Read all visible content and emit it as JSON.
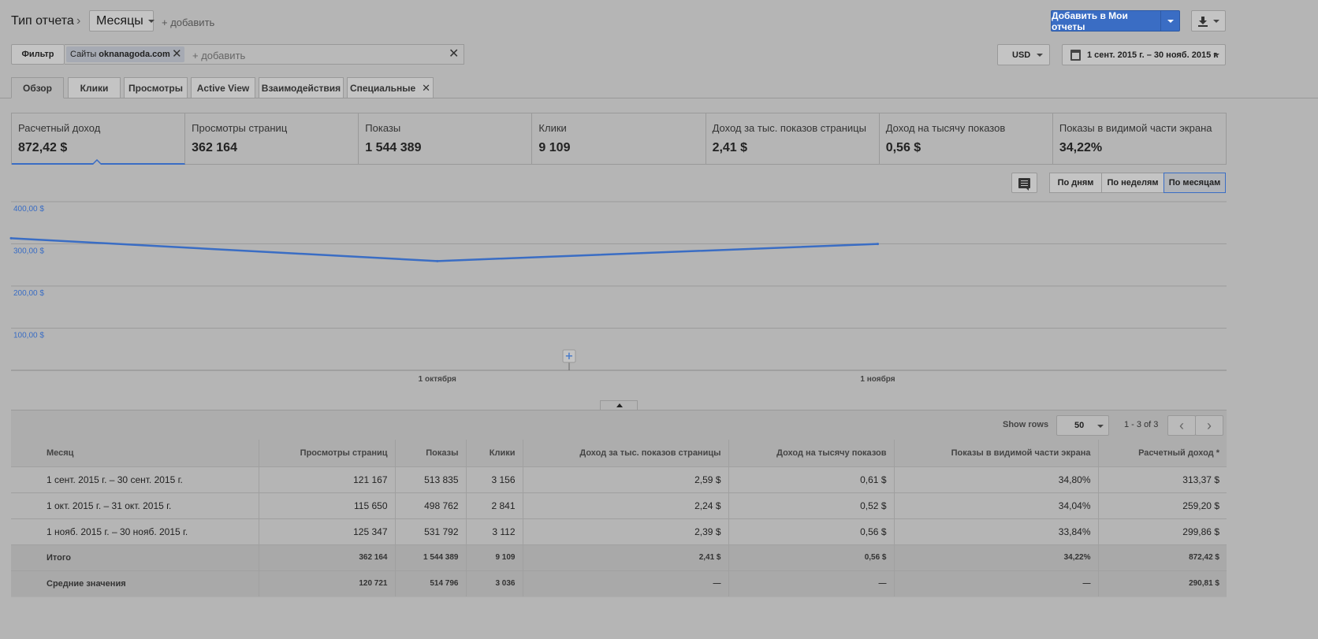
{
  "header": {
    "report_type_label": "Тип отчета",
    "dimension": "Месяцы",
    "add_dimension": "+ добавить",
    "add_to_reports": "Добавить в Мои отчеты"
  },
  "filter": {
    "button_label": "Фильтр",
    "chip_prefix": "Сайты",
    "chip_value": "oknanagoda.com",
    "add_placeholder": "+ добавить"
  },
  "currency": "USD",
  "date_range": "1 сент. 2015 г. – 30 нояб. 2015 г.",
  "tabs": [
    {
      "label": "Обзор",
      "active": true
    },
    {
      "label": "Клики"
    },
    {
      "label": "Просмотры"
    },
    {
      "label": "Active View"
    },
    {
      "label": "Взаимодействия"
    },
    {
      "label": "Специальные",
      "closable": true
    }
  ],
  "scorecards": [
    {
      "label": "Расчетный доход",
      "value": "872,42 $",
      "selected": true
    },
    {
      "label": "Просмотры страниц",
      "value": "362 164"
    },
    {
      "label": "Показы",
      "value": "1 544 389"
    },
    {
      "label": "Клики",
      "value": "9 109"
    },
    {
      "label": "Доход за тыс. показов страницы",
      "value": "2,41 $"
    },
    {
      "label": "Доход на тысячу показов",
      "value": "0,56 $"
    },
    {
      "label": "Показы в видимой части экрана",
      "value": "34,22%"
    }
  ],
  "period_buttons": [
    {
      "label": "По дням"
    },
    {
      "label": "По неделям"
    },
    {
      "label": "По месяцам",
      "active": true
    }
  ],
  "chart_data": {
    "type": "line",
    "x": [
      "2015-09-01",
      "2015-10-01",
      "2015-11-01"
    ],
    "series": [
      {
        "values": [
          313.37,
          259.2,
          299.86
        ]
      }
    ],
    "x_tick_labels": [
      "1 октября",
      "1 ноября"
    ],
    "y_tick_labels": [
      "400,00 $",
      "300,00 $",
      "200,00 $",
      "100,00 $"
    ],
    "ylim": [
      0,
      400
    ],
    "grid": true,
    "color": "#3a6dc4"
  },
  "table": {
    "show_rows_label": "Show rows",
    "rows_per_page": "50",
    "page_range": "1 - 3 of 3",
    "columns": [
      "Месяц",
      "Просмотры страниц",
      "Показы",
      "Клики",
      "Доход за тыс. показов страницы",
      "Доход на тысячу показов",
      "Показы в видимой части экрана",
      "Расчетный доход *"
    ],
    "rows": [
      [
        "1 сент. 2015 г. – 30 сент. 2015 г.",
        "121 167",
        "513 835",
        "3 156",
        "2,59 $",
        "0,61 $",
        "34,80%",
        "313,37 $"
      ],
      [
        "1 окт. 2015 г. – 31 окт. 2015 г.",
        "115 650",
        "498 762",
        "2 841",
        "2,24 $",
        "0,52 $",
        "34,04%",
        "259,20 $"
      ],
      [
        "1 нояб. 2015 г. – 30 нояб. 2015 г.",
        "125 347",
        "531 792",
        "3 112",
        "2,39 $",
        "0,56 $",
        "33,84%",
        "299,86 $"
      ]
    ],
    "summary_rows": [
      [
        "Итого",
        "362 164",
        "1 544 389",
        "9 109",
        "2,41 $",
        "0,56 $",
        "34,22%",
        "872,42 $"
      ],
      [
        "Средние значения",
        "120 721",
        "514 796",
        "3 036",
        "—",
        "—",
        "—",
        "290,81 $"
      ]
    ]
  }
}
